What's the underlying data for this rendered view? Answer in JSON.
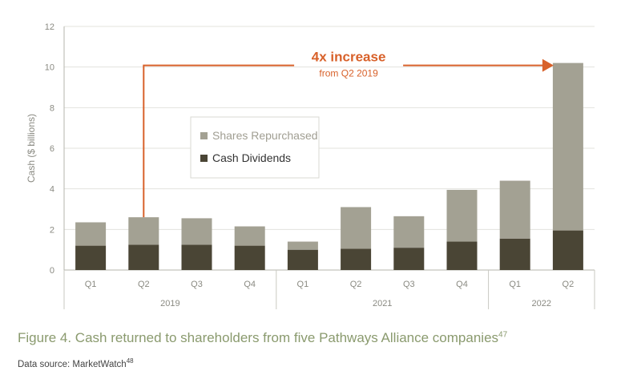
{
  "chart_data": {
    "type": "bar",
    "stacked": true,
    "ylabel": "Cash ($ billions)",
    "ylim": [
      0,
      12
    ],
    "yticks": [
      0,
      2,
      4,
      6,
      8,
      10,
      12
    ],
    "grid": true,
    "categories": [
      "Q1",
      "Q2",
      "Q3",
      "Q4",
      "Q1",
      "Q2",
      "Q3",
      "Q4",
      "Q1",
      "Q2"
    ],
    "groups": [
      {
        "label": "2019",
        "count": 4
      },
      {
        "label": "2021",
        "count": 4
      },
      {
        "label": "2022",
        "count": 2
      }
    ],
    "series": [
      {
        "name": "Cash Dividends",
        "color": "#4a4535",
        "values": [
          1.2,
          1.25,
          1.25,
          1.2,
          1.0,
          1.05,
          1.1,
          1.4,
          1.55,
          1.95
        ]
      },
      {
        "name": "Shares Repurchased",
        "color": "#a3a193",
        "values": [
          1.15,
          1.35,
          1.3,
          0.95,
          0.4,
          2.05,
          1.55,
          2.55,
          2.85,
          8.25
        ]
      }
    ],
    "legend": {
      "placement": "center-left",
      "order": [
        "Shares Repurchased",
        "Cash Dividends"
      ]
    },
    "annotation": {
      "title": "4x increase",
      "subtitle": "from  Q2 2019",
      "color": "#d8612a",
      "from_index": 1,
      "to_index": 9
    }
  },
  "caption": {
    "text": "Figure 4. Cash returned to shareholders from five Pathways Alliance companies",
    "ref": "47"
  },
  "source": {
    "text": "Data source: MarketWatch",
    "ref": "48"
  }
}
